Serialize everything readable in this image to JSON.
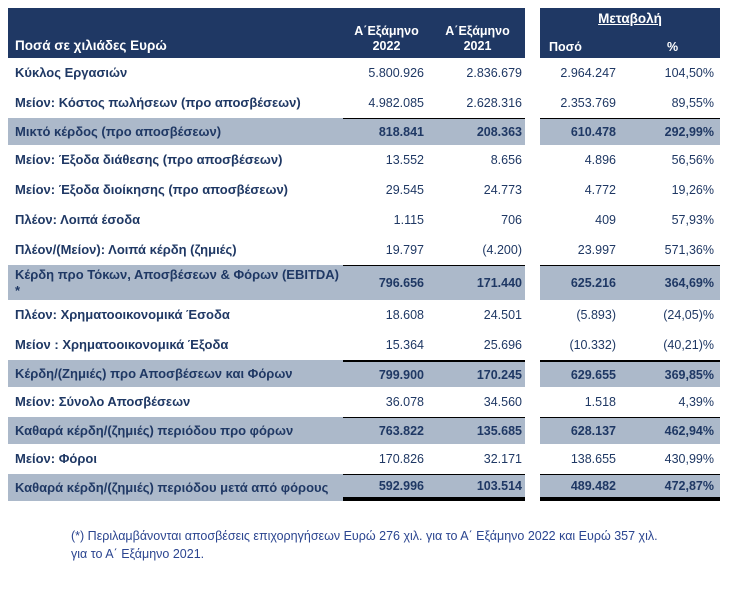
{
  "colors": {
    "header_bg": "#1F3864",
    "highlight_bg": "#ACB9CA",
    "text": "#1F3864",
    "border": "#000000"
  },
  "table": {
    "unit_label": "Ποσά σε χιλιάδες Ευρώ",
    "col_2022": {
      "line1": "Α΄Εξάμηνο",
      "line2": "2022"
    },
    "col_2021": {
      "line1": "Α΄Εξάμηνο",
      "line2": "2021"
    },
    "change": {
      "title": "Μεταβολή",
      "amount_label": "Ποσό",
      "pct_label": "%"
    },
    "rows": [
      {
        "label": "Κύκλος Εργασιών",
        "v2022": "5.800.926",
        "v2021": "2.836.679",
        "amount": "2.964.247",
        "pct": "104,50%",
        "highlight": false,
        "top_border": null,
        "bottom_border": null
      },
      {
        "label": "Μείον: Κόστος πωλήσεων (προ αποσβέσεων)",
        "v2022": "4.982.085",
        "v2021": "2.628.316",
        "amount": "2.353.769",
        "pct": "89,55%",
        "highlight": false,
        "top_border": null,
        "bottom_border": null
      },
      {
        "label": "Μικτό κέρδος (προ αποσβέσεων)",
        "v2022": "818.841",
        "v2021": "208.363",
        "amount": "610.478",
        "pct": "292,99%",
        "highlight": true,
        "top_border": "thin",
        "bottom_border": null
      },
      {
        "label": "Μείον: Έξοδα διάθεσης (προ αποσβέσεων)",
        "v2022": "13.552",
        "v2021": "8.656",
        "amount": "4.896",
        "pct": "56,56%",
        "highlight": false,
        "top_border": null,
        "bottom_border": null
      },
      {
        "label": "Μείον: Έξοδα διοίκησης (προ αποσβέσεων)",
        "v2022": "29.545",
        "v2021": "24.773",
        "amount": "4.772",
        "pct": "19,26%",
        "highlight": false,
        "top_border": null,
        "bottom_border": null
      },
      {
        "label": "Πλέον: Λοιπά έσοδα",
        "v2022": "1.115",
        "v2021": "706",
        "amount": "409",
        "pct": "57,93%",
        "highlight": false,
        "top_border": null,
        "bottom_border": null
      },
      {
        "label": "Πλέον/(Μείον): Λοιπά κέρδη (ζημιές)",
        "v2022": "19.797",
        "v2021": "(4.200)",
        "amount": "23.997",
        "pct": "571,36%",
        "highlight": false,
        "top_border": null,
        "bottom_border": null
      },
      {
        "label": "Κέρδη προ Τόκων, Αποσβέσεων & Φόρων (EBITDA) *",
        "v2022": "796.656",
        "v2021": "171.440",
        "amount": "625.216",
        "pct": "364,69%",
        "highlight": true,
        "top_border": "thin",
        "bottom_border": null
      },
      {
        "label": "Πλέον:  Χρηματοοικονομικά Έσοδα",
        "v2022": "18.608",
        "v2021": "24.501",
        "amount": "(5.893)",
        "pct": "(24,05)%",
        "highlight": false,
        "top_border": null,
        "bottom_border": null
      },
      {
        "label": "Μείον : Χρηματοοικονομικά Έξοδα",
        "v2022": "15.364",
        "v2021": "25.696",
        "amount": "(10.332)",
        "pct": "(40,21)%",
        "highlight": false,
        "top_border": null,
        "bottom_border": null
      },
      {
        "label": "Κέρδη/(Ζημιές) προ Αποσβέσεων και Φόρων",
        "v2022": "799.900",
        "v2021": "170.245",
        "amount": "629.655",
        "pct": "369,85%",
        "highlight": true,
        "top_border": "medium",
        "bottom_border": null
      },
      {
        "label": "Μείον: Σύνολο Αποσβέσεων",
        "v2022": "36.078",
        "v2021": "34.560",
        "amount": "1.518",
        "pct": "4,39%",
        "highlight": false,
        "top_border": null,
        "bottom_border": null
      },
      {
        "label": "Καθαρά κέρδη/(ζημιές) περιόδου προ φόρων",
        "v2022": "763.822",
        "v2021": "135.685",
        "amount": "628.137",
        "pct": "462,94%",
        "highlight": true,
        "top_border": "thin",
        "bottom_border": null
      },
      {
        "label": "Μείον: Φόροι",
        "v2022": "170.826",
        "v2021": "32.171",
        "amount": "138.655",
        "pct": "430,99%",
        "highlight": false,
        "top_border": null,
        "bottom_border": null
      },
      {
        "label": "Καθαρά κέρδη/(ζημιές) περιόδου μετά από φόρους",
        "v2022": "592.996",
        "v2021": "103.514",
        "amount": "489.482",
        "pct": "472,87%",
        "highlight": true,
        "top_border": "thin",
        "bottom_border": "thick"
      }
    ]
  },
  "footnote": "(*) Περιλαμβάνονται αποσβέσεις επιχορηγήσεων Ευρώ 276 χιλ. για το Α΄ Εξάμηνο  2022 και Ευρώ 357 χιλ. για το Α΄ Εξάμηνο 2021."
}
